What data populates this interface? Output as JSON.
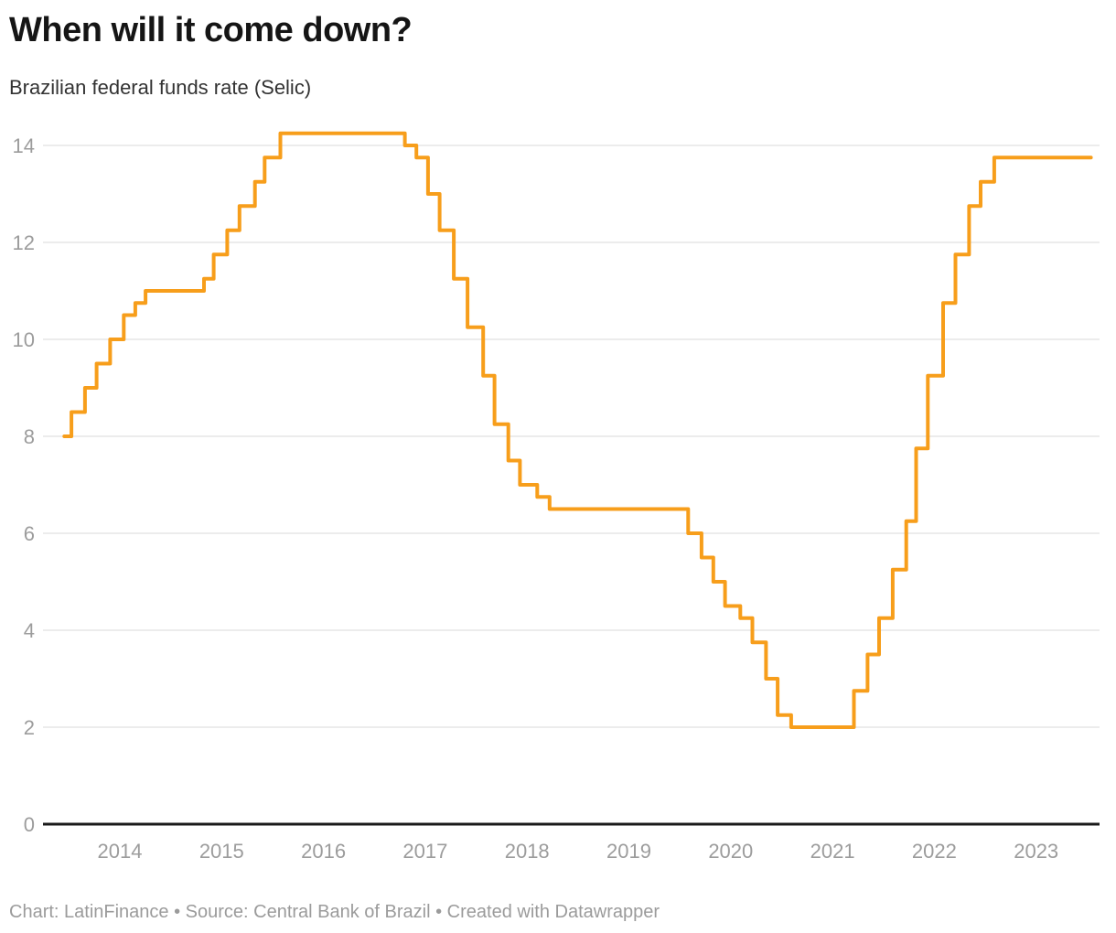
{
  "header": {
    "title": "When will it come down?",
    "subtitle": "Brazilian federal funds rate (Selic)"
  },
  "footer": {
    "text": "Chart: LatinFinance • Source: Central Bank of Brazil • Created with Datawrapper",
    "chart_credit": "LatinFinance",
    "source": "Central Bank of Brazil",
    "tool": "Datawrapper"
  },
  "colors": {
    "line": "#F79E1B",
    "grid": "#E6E6E6",
    "baseline": "#1A1A1A",
    "tick_label": "#9C9C9C",
    "title": "#151515",
    "subtitle": "#333333",
    "footer": "#9B9B9B",
    "background": "#FFFFFF"
  },
  "chart_data": {
    "type": "line",
    "step": true,
    "title": "When will it come down?",
    "subtitle": "Brazilian federal funds rate (Selic)",
    "series_name": "Brazilian federal funds rate (Selic), %",
    "ylim": [
      0,
      14.85
    ],
    "y_ticks": [
      0,
      2,
      4,
      6,
      8,
      10,
      12,
      14
    ],
    "x_ticks": [
      2014,
      2015,
      2016,
      2017,
      2018,
      2019,
      2020,
      2021,
      2022,
      2023
    ],
    "grid": true,
    "legend": "none",
    "x_range": [
      "2013-06-15",
      "2023-07-15"
    ],
    "end_date": "2023-07-15",
    "points": [
      {
        "date": "2013-06-15",
        "rate": 8.0
      },
      {
        "date": "2013-07-10",
        "rate": 8.5
      },
      {
        "date": "2013-08-28",
        "rate": 9.0
      },
      {
        "date": "2013-10-09",
        "rate": 9.5
      },
      {
        "date": "2013-11-27",
        "rate": 10.0
      },
      {
        "date": "2014-01-15",
        "rate": 10.5
      },
      {
        "date": "2014-02-26",
        "rate": 10.75
      },
      {
        "date": "2014-04-02",
        "rate": 11.0
      },
      {
        "date": "2014-10-29",
        "rate": 11.25
      },
      {
        "date": "2014-12-03",
        "rate": 11.75
      },
      {
        "date": "2015-01-21",
        "rate": 12.25
      },
      {
        "date": "2015-03-04",
        "rate": 12.75
      },
      {
        "date": "2015-04-29",
        "rate": 13.25
      },
      {
        "date": "2015-06-03",
        "rate": 13.75
      },
      {
        "date": "2015-07-29",
        "rate": 14.25
      },
      {
        "date": "2016-10-19",
        "rate": 14.0
      },
      {
        "date": "2016-11-30",
        "rate": 13.75
      },
      {
        "date": "2017-01-11",
        "rate": 13.0
      },
      {
        "date": "2017-02-22",
        "rate": 12.25
      },
      {
        "date": "2017-04-12",
        "rate": 11.25
      },
      {
        "date": "2017-05-31",
        "rate": 10.25
      },
      {
        "date": "2017-07-26",
        "rate": 9.25
      },
      {
        "date": "2017-09-06",
        "rate": 8.25
      },
      {
        "date": "2017-10-25",
        "rate": 7.5
      },
      {
        "date": "2017-12-06",
        "rate": 7.0
      },
      {
        "date": "2018-02-07",
        "rate": 6.75
      },
      {
        "date": "2018-03-21",
        "rate": 6.5
      },
      {
        "date": "2019-07-31",
        "rate": 6.0
      },
      {
        "date": "2019-09-18",
        "rate": 5.5
      },
      {
        "date": "2019-10-30",
        "rate": 5.0
      },
      {
        "date": "2019-12-11",
        "rate": 4.5
      },
      {
        "date": "2020-02-05",
        "rate": 4.25
      },
      {
        "date": "2020-03-18",
        "rate": 3.75
      },
      {
        "date": "2020-05-06",
        "rate": 3.0
      },
      {
        "date": "2020-06-17",
        "rate": 2.25
      },
      {
        "date": "2020-08-05",
        "rate": 2.0
      },
      {
        "date": "2021-03-17",
        "rate": 2.75
      },
      {
        "date": "2021-05-05",
        "rate": 3.5
      },
      {
        "date": "2021-06-16",
        "rate": 4.25
      },
      {
        "date": "2021-08-04",
        "rate": 5.25
      },
      {
        "date": "2021-09-22",
        "rate": 6.25
      },
      {
        "date": "2021-10-27",
        "rate": 7.75
      },
      {
        "date": "2021-12-08",
        "rate": 9.25
      },
      {
        "date": "2022-02-02",
        "rate": 10.75
      },
      {
        "date": "2022-03-16",
        "rate": 11.75
      },
      {
        "date": "2022-05-04",
        "rate": 12.75
      },
      {
        "date": "2022-06-15",
        "rate": 13.25
      },
      {
        "date": "2022-08-03",
        "rate": 13.75
      }
    ]
  }
}
